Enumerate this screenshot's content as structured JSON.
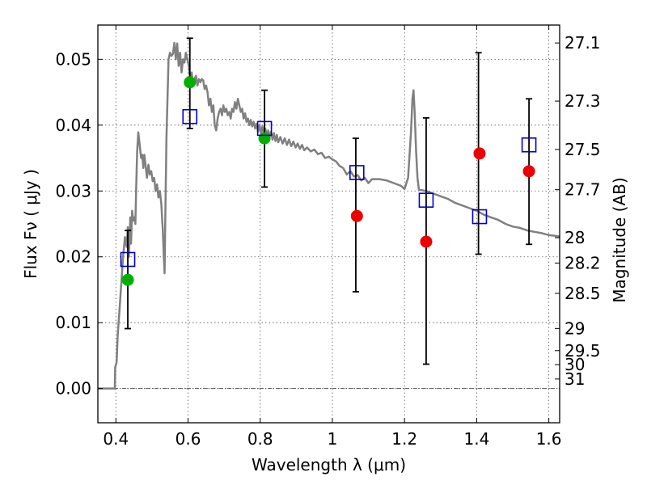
{
  "chart_data": {
    "type": "scatter",
    "xlabel": "Wavelength  λ (μm)",
    "ylabel_left": "Flux  Fν  ( μJy )",
    "ylabel_right": "Magnitude (AB)",
    "xlim": [
      0.35,
      1.63
    ],
    "ylim": [
      -0.0052,
      0.0552
    ],
    "x_ticks": [
      {
        "value": 0.4,
        "label": "0.4"
      },
      {
        "value": 0.6,
        "label": "0.6"
      },
      {
        "value": 0.8,
        "label": "0.8"
      },
      {
        "value": 1.0,
        "label": "1"
      },
      {
        "value": 1.2,
        "label": "1.2"
      },
      {
        "value": 1.4,
        "label": "1.4"
      },
      {
        "value": 1.6,
        "label": "1.6"
      }
    ],
    "y_ticks": [
      {
        "value": 0.0,
        "label": "0.00"
      },
      {
        "value": 0.01,
        "label": "0.01"
      },
      {
        "value": 0.02,
        "label": "0.02"
      },
      {
        "value": 0.03,
        "label": "0.03"
      },
      {
        "value": 0.04,
        "label": "0.04"
      },
      {
        "value": 0.05,
        "label": "0.05"
      }
    ],
    "mag_ticks": [
      "27.1",
      "27.3",
      "27.5",
      "27.7",
      "28",
      "28.2",
      "28.5",
      "29",
      "29.5",
      "30",
      "31"
    ],
    "grid": true,
    "series": [
      {
        "name": "model spectrum",
        "kind": "line",
        "color": "#808080",
        "points": [
          [
            0.35,
            0.0
          ],
          [
            0.38,
            0.0
          ],
          [
            0.397,
            0.0
          ],
          [
            0.398,
            0.0032
          ],
          [
            0.402,
            0.004
          ],
          [
            0.405,
            0.008
          ],
          [
            0.41,
            0.012
          ],
          [
            0.415,
            0.016
          ],
          [
            0.42,
            0.02
          ],
          [
            0.425,
            0.023
          ],
          [
            0.43,
            0.0215
          ],
          [
            0.433,
            0.0245
          ],
          [
            0.436,
            0.02
          ],
          [
            0.44,
            0.026
          ],
          [
            0.442,
            0.022
          ],
          [
            0.445,
            0.027
          ],
          [
            0.448,
            0.0255
          ],
          [
            0.451,
            0.026
          ],
          [
            0.454,
            0.025
          ],
          [
            0.456,
            0.03
          ],
          [
            0.459,
            0.036
          ],
          [
            0.462,
            0.0389
          ],
          [
            0.466,
            0.037
          ],
          [
            0.47,
            0.035
          ],
          [
            0.473,
            0.0355
          ],
          [
            0.476,
            0.0335
          ],
          [
            0.479,
            0.0355
          ],
          [
            0.482,
            0.034
          ],
          [
            0.486,
            0.032
          ],
          [
            0.49,
            0.034
          ],
          [
            0.494,
            0.0325
          ],
          [
            0.498,
            0.033
          ],
          [
            0.502,
            0.0315
          ],
          [
            0.506,
            0.032
          ],
          [
            0.51,
            0.03
          ],
          [
            0.514,
            0.031
          ],
          [
            0.518,
            0.029
          ],
          [
            0.522,
            0.03
          ],
          [
            0.526,
            0.028
          ],
          [
            0.53,
            0.024
          ],
          [
            0.533,
            0.02
          ],
          [
            0.535,
            0.0175
          ],
          [
            0.537,
            0.026
          ],
          [
            0.54,
            0.038
          ],
          [
            0.543,
            0.044
          ],
          [
            0.546,
            0.05
          ],
          [
            0.55,
            0.051
          ],
          [
            0.554,
            0.0505
          ],
          [
            0.558,
            0.0508
          ],
          [
            0.562,
            0.0525
          ],
          [
            0.566,
            0.05
          ],
          [
            0.57,
            0.0524
          ],
          [
            0.574,
            0.049
          ],
          [
            0.578,
            0.051
          ],
          [
            0.582,
            0.048
          ],
          [
            0.586,
            0.05
          ],
          [
            0.59,
            0.0495
          ],
          [
            0.594,
            0.051
          ],
          [
            0.598,
            0.05
          ],
          [
            0.602,
            0.049
          ],
          [
            0.606,
            0.047
          ],
          [
            0.61,
            0.048
          ],
          [
            0.614,
            0.046
          ],
          [
            0.618,
            0.047
          ],
          [
            0.622,
            0.0475
          ],
          [
            0.626,
            0.046
          ],
          [
            0.63,
            0.047
          ],
          [
            0.634,
            0.0465
          ],
          [
            0.638,
            0.047
          ],
          [
            0.642,
            0.0468
          ],
          [
            0.646,
            0.0455
          ],
          [
            0.65,
            0.046
          ],
          [
            0.654,
            0.045
          ],
          [
            0.658,
            0.043
          ],
          [
            0.662,
            0.044
          ],
          [
            0.666,
            0.042
          ],
          [
            0.67,
            0.043
          ],
          [
            0.674,
            0.04
          ],
          [
            0.678,
            0.0392
          ],
          [
            0.682,
            0.041
          ],
          [
            0.686,
            0.042
          ],
          [
            0.69,
            0.0425
          ],
          [
            0.694,
            0.0415
          ],
          [
            0.698,
            0.043
          ],
          [
            0.702,
            0.042
          ],
          [
            0.706,
            0.0425
          ],
          [
            0.71,
            0.0415
          ],
          [
            0.714,
            0.042
          ],
          [
            0.718,
            0.041
          ],
          [
            0.722,
            0.0425
          ],
          [
            0.726,
            0.042
          ],
          [
            0.73,
            0.0435
          ],
          [
            0.734,
            0.0425
          ],
          [
            0.738,
            0.044
          ],
          [
            0.742,
            0.043
          ],
          [
            0.746,
            0.042
          ],
          [
            0.75,
            0.0425
          ],
          [
            0.754,
            0.041
          ],
          [
            0.758,
            0.0418
          ],
          [
            0.762,
            0.0405
          ],
          [
            0.766,
            0.041
          ],
          [
            0.77,
            0.04
          ],
          [
            0.774,
            0.0408
          ],
          [
            0.778,
            0.0398
          ],
          [
            0.782,
            0.0405
          ],
          [
            0.786,
            0.0395
          ],
          [
            0.79,
            0.0402
          ],
          [
            0.794,
            0.039
          ],
          [
            0.798,
            0.04
          ],
          [
            0.802,
            0.0388
          ],
          [
            0.806,
            0.0398
          ],
          [
            0.81,
            0.0386
          ],
          [
            0.814,
            0.0395
          ],
          [
            0.818,
            0.0384
          ],
          [
            0.822,
            0.0392
          ],
          [
            0.826,
            0.0382
          ],
          [
            0.83,
            0.039
          ],
          [
            0.834,
            0.0378
          ],
          [
            0.838,
            0.0388
          ],
          [
            0.842,
            0.0376
          ],
          [
            0.846,
            0.0385
          ],
          [
            0.85,
            0.0374
          ],
          [
            0.856,
            0.0382
          ],
          [
            0.862,
            0.0372
          ],
          [
            0.868,
            0.038
          ],
          [
            0.874,
            0.037
          ],
          [
            0.88,
            0.0378
          ],
          [
            0.886,
            0.0368
          ],
          [
            0.892,
            0.0375
          ],
          [
            0.898,
            0.0366
          ],
          [
            0.904,
            0.0372
          ],
          [
            0.91,
            0.0364
          ],
          [
            0.916,
            0.037
          ],
          [
            0.922,
            0.0362
          ],
          [
            0.93,
            0.0366
          ],
          [
            0.94,
            0.036
          ],
          [
            0.95,
            0.0363
          ],
          [
            0.96,
            0.0356
          ],
          [
            0.97,
            0.0358
          ],
          [
            0.98,
            0.035
          ],
          [
            0.99,
            0.0352
          ],
          [
            1.0,
            0.0348
          ],
          [
            1.01,
            0.0345
          ],
          [
            1.02,
            0.0338
          ],
          [
            1.03,
            0.0335
          ],
          [
            1.04,
            0.0325
          ],
          [
            1.05,
            0.033
          ],
          [
            1.06,
            0.0322
          ],
          [
            1.07,
            0.0324
          ],
          [
            1.08,
            0.0316
          ],
          [
            1.09,
            0.032
          ],
          [
            1.1,
            0.0312
          ],
          [
            1.11,
            0.0318
          ],
          [
            1.13,
            0.0318
          ],
          [
            1.15,
            0.0316
          ],
          [
            1.17,
            0.0312
          ],
          [
            1.19,
            0.0308
          ],
          [
            1.2,
            0.0303
          ],
          [
            1.21,
            0.032
          ],
          [
            1.218,
            0.039
          ],
          [
            1.222,
            0.044
          ],
          [
            1.225,
            0.0453
          ],
          [
            1.228,
            0.042
          ],
          [
            1.232,
            0.036
          ],
          [
            1.236,
            0.032
          ],
          [
            1.24,
            0.0302
          ],
          [
            1.26,
            0.03
          ],
          [
            1.28,
            0.0296
          ],
          [
            1.3,
            0.0292
          ],
          [
            1.32,
            0.0288
          ],
          [
            1.34,
            0.0282
          ],
          [
            1.36,
            0.0278
          ],
          [
            1.38,
            0.0274
          ],
          [
            1.4,
            0.027
          ],
          [
            1.42,
            0.0264
          ],
          [
            1.44,
            0.026
          ],
          [
            1.46,
            0.0256
          ],
          [
            1.48,
            0.025
          ],
          [
            1.5,
            0.0246
          ],
          [
            1.52,
            0.0244
          ],
          [
            1.54,
            0.024
          ],
          [
            1.56,
            0.0238
          ],
          [
            1.58,
            0.0236
          ],
          [
            1.6,
            0.0233
          ],
          [
            1.63,
            0.0231
          ]
        ]
      },
      {
        "name": "errorbars",
        "kind": "errorbar",
        "color": "#000000",
        "points": [
          {
            "x": 0.433,
            "low": 0.0091,
            "high": 0.024
          },
          {
            "x": 0.605,
            "low": 0.0395,
            "high": 0.0532
          },
          {
            "x": 0.812,
            "low": 0.0306,
            "high": 0.0453
          },
          {
            "x": 1.065,
            "low": 0.0147,
            "high": 0.038
          },
          {
            "x": 1.26,
            "low": 0.0037,
            "high": 0.0411
          },
          {
            "x": 1.405,
            "low": 0.0204,
            "high": 0.051
          },
          {
            "x": 1.545,
            "low": 0.0219,
            "high": 0.044
          }
        ]
      },
      {
        "name": "green observed",
        "kind": "circle",
        "color": "#00b000",
        "points": [
          [
            0.433,
            0.0165
          ],
          [
            0.605,
            0.0465
          ],
          [
            0.812,
            0.038
          ]
        ]
      },
      {
        "name": "red observed",
        "kind": "circle",
        "color": "#ee0000",
        "points": [
          [
            1.068,
            0.0262
          ],
          [
            1.26,
            0.0223
          ],
          [
            1.408,
            0.0357
          ],
          [
            1.545,
            0.033
          ]
        ]
      },
      {
        "name": "model photometry",
        "kind": "square",
        "color": "#0000cc",
        "points": [
          [
            0.433,
            0.0196
          ],
          [
            0.605,
            0.0413
          ],
          [
            0.812,
            0.0395
          ],
          [
            1.068,
            0.0328
          ],
          [
            1.26,
            0.0286
          ],
          [
            1.408,
            0.0261
          ],
          [
            1.545,
            0.037
          ]
        ]
      }
    ]
  }
}
